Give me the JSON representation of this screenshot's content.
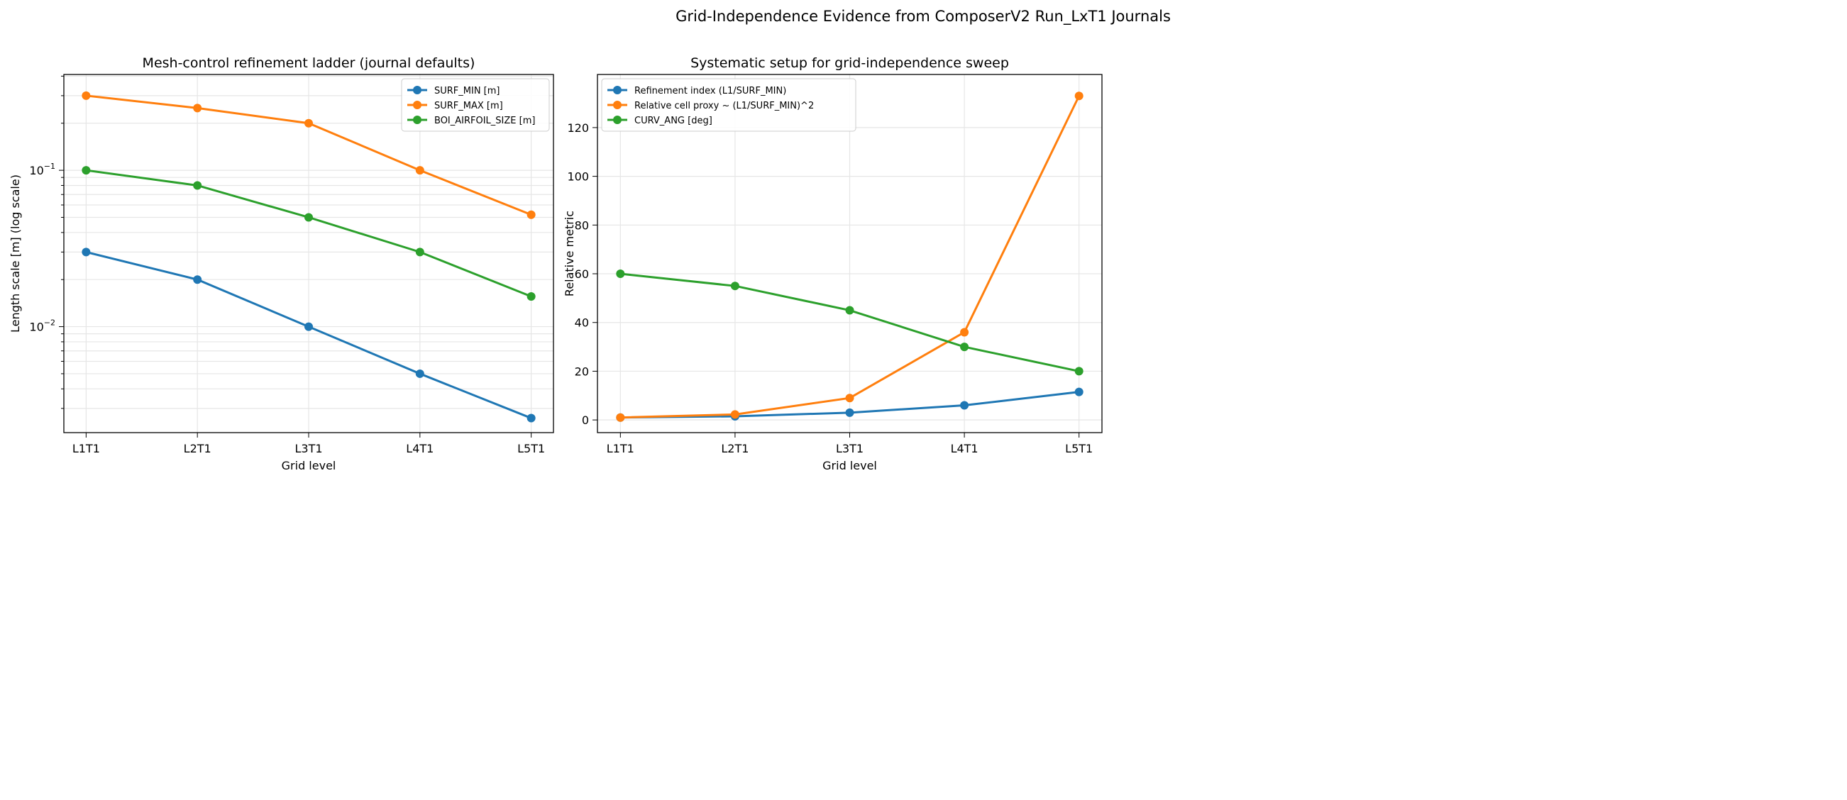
{
  "suptitle": "Grid-Independence Evidence from ComposerV2 Run_LxT1 Journals",
  "chart_data": [
    {
      "type": "line",
      "title": "Mesh-control refinement ladder (journal defaults)",
      "xlabel": "Grid level",
      "ylabel": "Length scale [m] (log scale)",
      "yscale": "log",
      "ylim": [
        0.0021,
        0.41
      ],
      "yticks": [
        {
          "value": 0.1,
          "base": "10",
          "exp": "−1"
        },
        {
          "value": 0.01,
          "base": "10",
          "exp": "−2"
        }
      ],
      "categories": [
        "L1T1",
        "L2T1",
        "L3T1",
        "L4T1",
        "L5T1"
      ],
      "grid": true,
      "legend": "top-right",
      "series": [
        {
          "name": "SURF_MIN [m]",
          "color": "#1f77b4",
          "values": [
            0.03,
            0.02,
            0.01,
            0.005,
            0.0026
          ]
        },
        {
          "name": "SURF_MAX [m]",
          "color": "#ff7f0e",
          "values": [
            0.3,
            0.25,
            0.2,
            0.1,
            0.052
          ]
        },
        {
          "name": "BOI_AIRFOIL_SIZE [m]",
          "color": "#2ca02c",
          "values": [
            0.1,
            0.08,
            0.05,
            0.03,
            0.0156
          ]
        }
      ]
    },
    {
      "type": "line",
      "title": "Systematic setup for grid-independence sweep",
      "xlabel": "Grid level",
      "ylabel": "Relative metric",
      "yscale": "linear",
      "ylim": [
        -5.2,
        141.8
      ],
      "yticks": [
        0,
        20,
        40,
        60,
        80,
        100,
        120
      ],
      "categories": [
        "L1T1",
        "L2T1",
        "L3T1",
        "L4T1",
        "L5T1"
      ],
      "grid": true,
      "legend": "top-left",
      "series": [
        {
          "name": "Refinement index (L1/SURF_MIN)",
          "color": "#1f77b4",
          "values": [
            1,
            1.5,
            3,
            6,
            11.5
          ]
        },
        {
          "name": "Relative cell proxy ~ (L1/SURF_MIN)^2",
          "color": "#ff7f0e",
          "values": [
            1,
            2.25,
            9,
            36,
            133
          ]
        },
        {
          "name": "CURV_ANG [deg]",
          "color": "#2ca02c",
          "values": [
            60,
            55,
            45,
            30,
            20
          ]
        }
      ]
    }
  ]
}
